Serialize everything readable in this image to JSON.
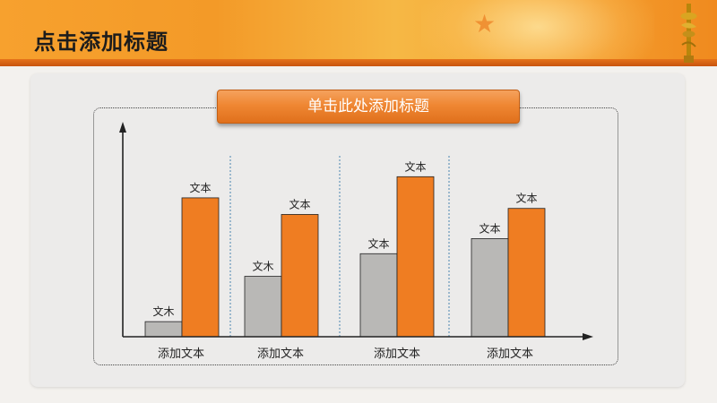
{
  "header": {
    "title": "点击添加标题"
  },
  "panel": {
    "title_button": "单击此处添加标题"
  },
  "colors": {
    "accent": "#ef7d22",
    "gray_bar": "#b9b8b6",
    "header": "#f39a28"
  },
  "icons": [
    "star-icon",
    "column-ornament-icon"
  ],
  "chart_data": {
    "type": "bar",
    "categories": [
      "添加文本",
      "添加文本",
      "添加文本",
      "添加文本"
    ],
    "series": [
      {
        "values": [
          1,
          4,
          5.5,
          6.5
        ],
        "color": "#b9b8b6",
        "labels": [
          "文木",
          "文木",
          "文本",
          "文本"
        ]
      },
      {
        "values": [
          9.2,
          8.1,
          10.6,
          8.5
        ],
        "color": "#ef7d22",
        "labels": [
          "文本",
          "文本",
          "文本",
          "文本"
        ]
      }
    ],
    "ylim": [
      0,
      14
    ],
    "dividers": true,
    "xlabel": "",
    "ylabel": ""
  }
}
